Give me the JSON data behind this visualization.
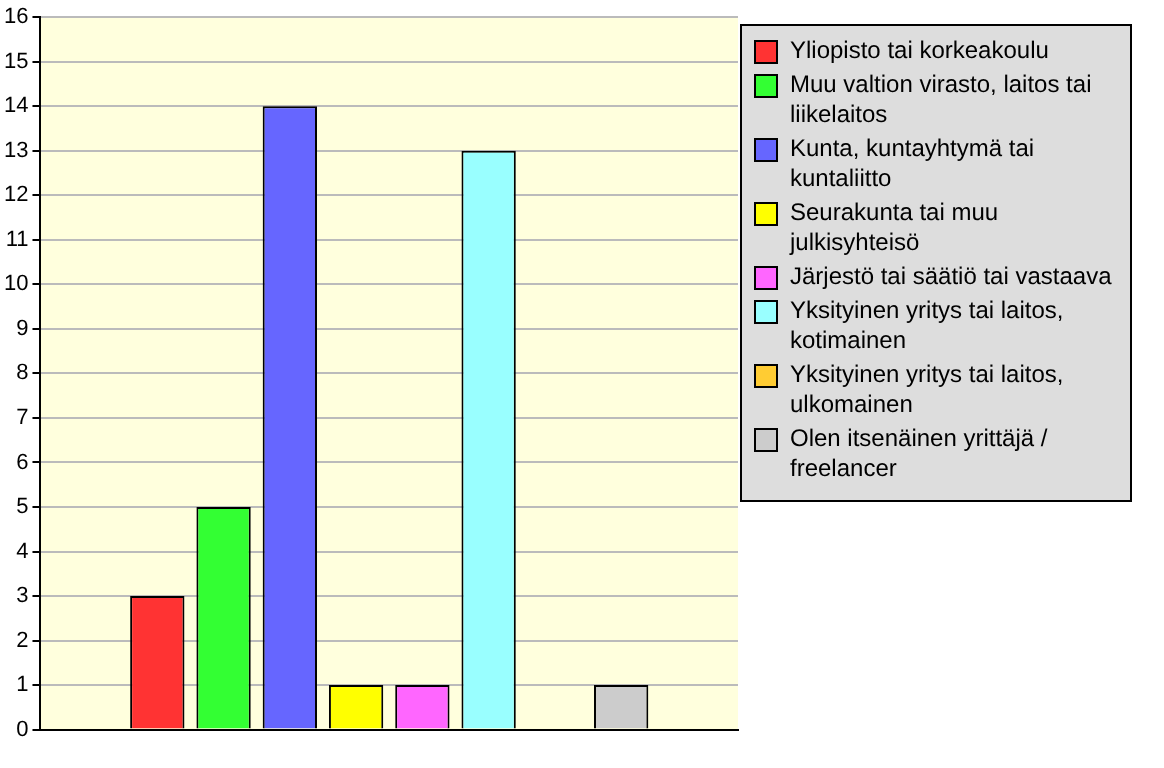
{
  "chart_data": {
    "type": "bar",
    "categories": [
      null
    ],
    "series": [
      {
        "name": "Yliopisto tai korkeakoulu",
        "color": "#ff3333",
        "values": [
          3
        ]
      },
      {
        "name": "Muu valtion virasto, laitos tai liikelaitos",
        "color": "#33ff33",
        "values": [
          5
        ]
      },
      {
        "name": "Kunta, kuntayhtymä tai kuntaliitto",
        "color": "#6666ff",
        "values": [
          14
        ]
      },
      {
        "name": "Seurakunta tai muu julkisyhteisö",
        "color": "#ffff00",
        "values": [
          1
        ]
      },
      {
        "name": "Järjestö tai säätiö tai vastaava",
        "color": "#ff66ff",
        "values": [
          1
        ]
      },
      {
        "name": "Yksityinen yritys tai laitos, kotimainen",
        "color": "#99ffff",
        "values": [
          13
        ]
      },
      {
        "name": "Yksityinen yritys tai laitos, ulkomainen",
        "color": "#ffcc33",
        "values": [
          0
        ]
      },
      {
        "name": "Olen itsenäinen yrittäjä / freelancer",
        "color": "#cccccc",
        "values": [
          1
        ]
      }
    ],
    "ylim": [
      0,
      16
    ],
    "yticks": [
      0,
      1,
      2,
      3,
      4,
      5,
      6,
      7,
      8,
      9,
      10,
      11,
      12,
      13,
      14,
      15,
      16
    ],
    "grid": "y",
    "legend": "right"
  }
}
